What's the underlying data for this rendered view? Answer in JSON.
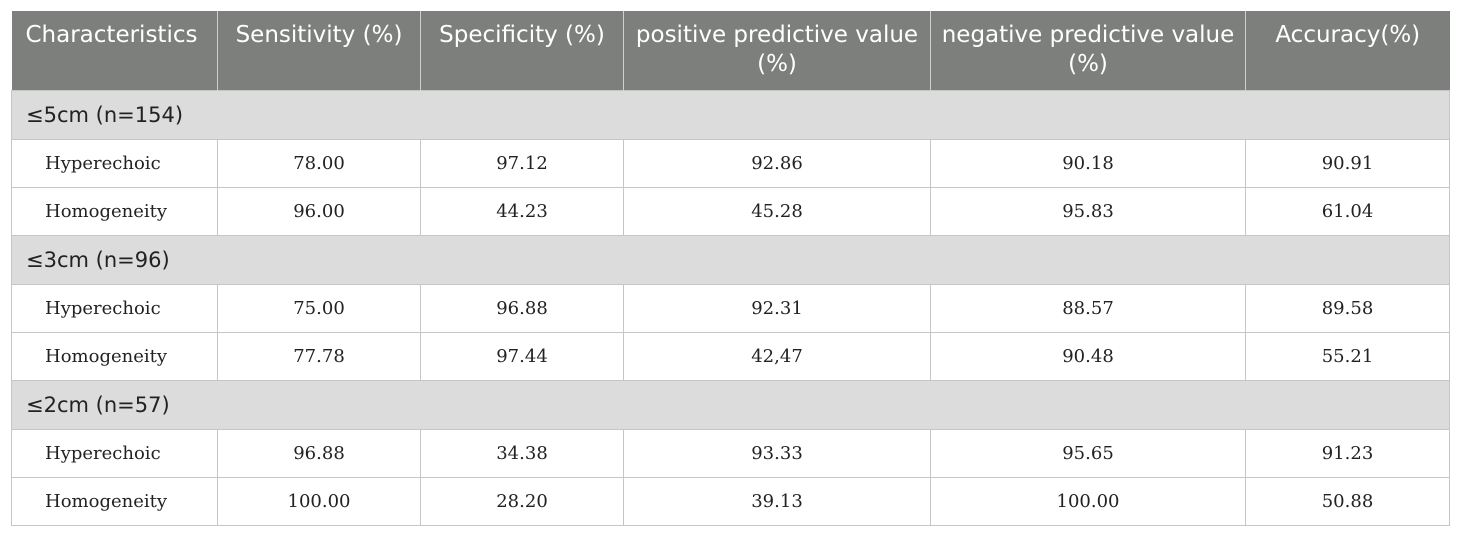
{
  "table": {
    "headers": [
      "Characteristics",
      "Sensitivity (%)",
      "Specificity (%)",
      "positive predictive value (%)",
      "negative predictive value (%)",
      "Accuracy(%)"
    ],
    "groups": [
      {
        "label": "≤5cm (n=154)",
        "rows": [
          [
            "Hyperechoic",
            "78.00",
            "97.12",
            "92.86",
            "90.18",
            "90.91"
          ],
          [
            "Homogeneity",
            "96.00",
            "44.23",
            "45.28",
            "95.83",
            "61.04"
          ]
        ]
      },
      {
        "label": "≤3cm (n=96)",
        "rows": [
          [
            "Hyperechoic",
            "75.00",
            "96.88",
            "92.31",
            "88.57",
            "89.58"
          ],
          [
            "Homogeneity",
            "77.78",
            "97.44",
            "42,47",
            "90.48",
            "55.21"
          ]
        ]
      },
      {
        "label": "≤2cm (n=57)",
        "rows": [
          [
            "Hyperechoic",
            "96.88",
            "34.38",
            "93.33",
            "95.65",
            "91.23"
          ],
          [
            "Homogeneity",
            "100.00",
            "28.20",
            "39.13",
            "100.00",
            "50.88"
          ]
        ]
      }
    ]
  }
}
